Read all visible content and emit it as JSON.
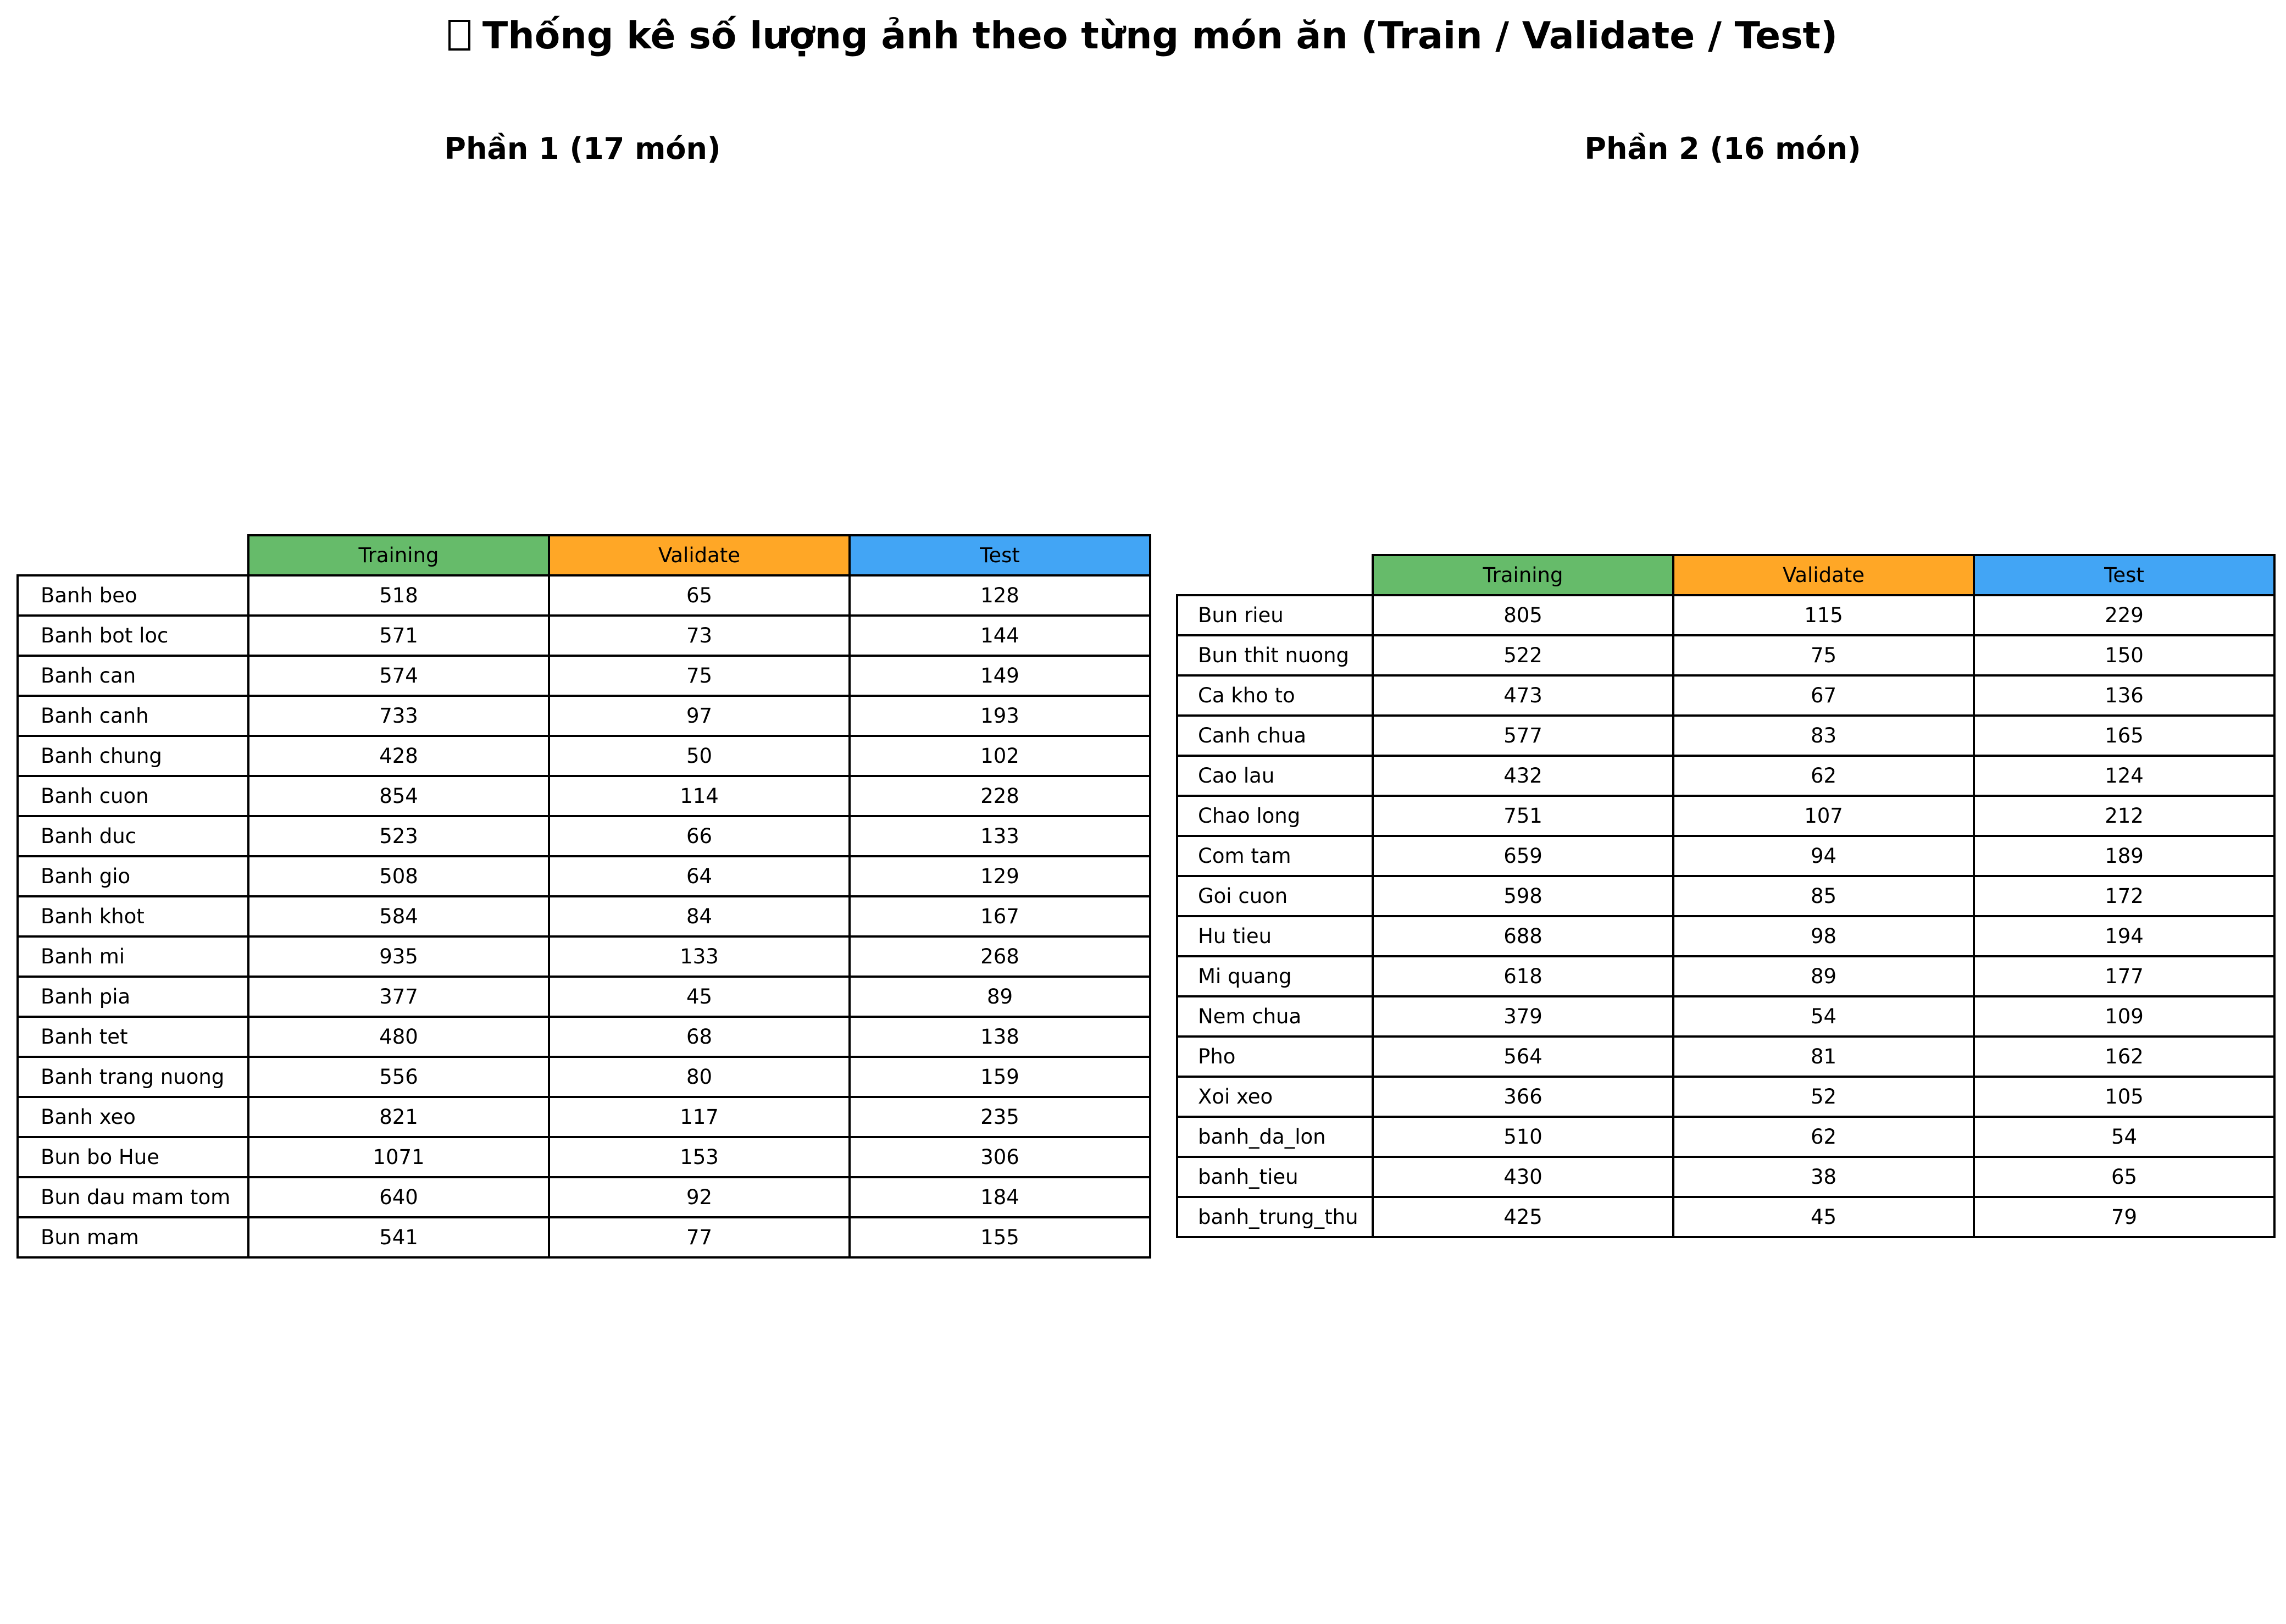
{
  "title": "Thống kê số lượng ảnh theo từng món ăn (Train / Validate / Test)",
  "colors": {
    "training": "#66bb6a",
    "validate": "#ffa726",
    "test": "#42a5f5"
  },
  "chart_data": [
    {
      "type": "table",
      "title": "Phần 1 (17 món)",
      "columns": [
        "Training",
        "Validate",
        "Test"
      ],
      "rows": [
        {
          "label": "Banh beo",
          "values": [
            518,
            65,
            128
          ]
        },
        {
          "label": "Banh bot loc",
          "values": [
            571,
            73,
            144
          ]
        },
        {
          "label": "Banh can",
          "values": [
            574,
            75,
            149
          ]
        },
        {
          "label": "Banh canh",
          "values": [
            733,
            97,
            193
          ]
        },
        {
          "label": "Banh chung",
          "values": [
            428,
            50,
            102
          ]
        },
        {
          "label": "Banh cuon",
          "values": [
            854,
            114,
            228
          ]
        },
        {
          "label": "Banh duc",
          "values": [
            523,
            66,
            133
          ]
        },
        {
          "label": "Banh gio",
          "values": [
            508,
            64,
            129
          ]
        },
        {
          "label": "Banh khot",
          "values": [
            584,
            84,
            167
          ]
        },
        {
          "label": "Banh mi",
          "values": [
            935,
            133,
            268
          ]
        },
        {
          "label": "Banh pia",
          "values": [
            377,
            45,
            89
          ]
        },
        {
          "label": "Banh tet",
          "values": [
            480,
            68,
            138
          ]
        },
        {
          "label": "Banh trang nuong",
          "values": [
            556,
            80,
            159
          ]
        },
        {
          "label": "Banh xeo",
          "values": [
            821,
            117,
            235
          ]
        },
        {
          "label": "Bun bo Hue",
          "values": [
            1071,
            153,
            306
          ]
        },
        {
          "label": "Bun dau mam tom",
          "values": [
            640,
            92,
            184
          ]
        },
        {
          "label": "Bun mam",
          "values": [
            541,
            77,
            155
          ]
        }
      ]
    },
    {
      "type": "table",
      "title": "Phần 2 (16 món)",
      "columns": [
        "Training",
        "Validate",
        "Test"
      ],
      "rows": [
        {
          "label": "Bun rieu",
          "values": [
            805,
            115,
            229
          ]
        },
        {
          "label": "Bun thit nuong",
          "values": [
            522,
            75,
            150
          ]
        },
        {
          "label": "Ca kho to",
          "values": [
            473,
            67,
            136
          ]
        },
        {
          "label": "Canh chua",
          "values": [
            577,
            83,
            165
          ]
        },
        {
          "label": "Cao lau",
          "values": [
            432,
            62,
            124
          ]
        },
        {
          "label": "Chao long",
          "values": [
            751,
            107,
            212
          ]
        },
        {
          "label": "Com tam",
          "values": [
            659,
            94,
            189
          ]
        },
        {
          "label": "Goi cuon",
          "values": [
            598,
            85,
            172
          ]
        },
        {
          "label": "Hu tieu",
          "values": [
            688,
            98,
            194
          ]
        },
        {
          "label": "Mi quang",
          "values": [
            618,
            89,
            177
          ]
        },
        {
          "label": "Nem chua",
          "values": [
            379,
            54,
            109
          ]
        },
        {
          "label": "Pho",
          "values": [
            564,
            81,
            162
          ]
        },
        {
          "label": "Xoi xeo",
          "values": [
            366,
            52,
            105
          ]
        },
        {
          "label": "banh_da_lon",
          "values": [
            510,
            62,
            54
          ]
        },
        {
          "label": "banh_tieu",
          "values": [
            430,
            38,
            65
          ]
        },
        {
          "label": "banh_trung_thu",
          "values": [
            425,
            45,
            79
          ]
        }
      ]
    }
  ]
}
